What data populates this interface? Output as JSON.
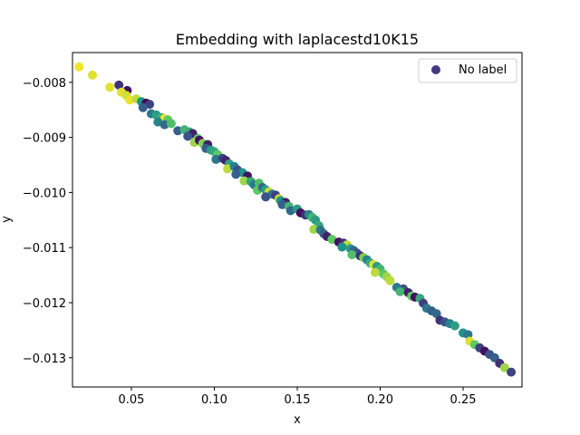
{
  "chart_data": {
    "type": "scatter",
    "title": "Embedding with laplacestd10K15",
    "xlabel": "x",
    "ylabel": "y",
    "xlim": [
      0.0145,
      0.2855
    ],
    "ylim": [
      -0.01353,
      -0.00746
    ],
    "xticks": [
      0.05,
      0.1,
      0.15,
      0.2,
      0.25
    ],
    "xtick_labels": [
      "0.05",
      "0.10",
      "0.15",
      "0.20",
      "0.25"
    ],
    "yticks": [
      -0.008,
      -0.009,
      -0.01,
      -0.011,
      -0.012,
      -0.013
    ],
    "ytick_labels": [
      "−0.008",
      "−0.009",
      "−0.010",
      "−0.011",
      "−0.012",
      "−0.013"
    ],
    "grid": false,
    "legend": {
      "entries": [
        "No label"
      ],
      "placement": "upper right",
      "marker_color": "#443983"
    },
    "colormap": "viridis",
    "series": [
      {
        "points": [
          [
            0.0185,
            -0.00772,
            0.98
          ],
          [
            0.0265,
            -0.00787,
            0.95
          ],
          [
            0.037,
            -0.00809,
            0.96
          ],
          [
            0.0425,
            -0.00805,
            0.15
          ],
          [
            0.0475,
            -0.00815,
            0.05
          ],
          [
            0.044,
            -0.00818,
            0.95
          ],
          [
            0.047,
            -0.00824,
            0.93
          ],
          [
            0.049,
            -0.00832,
            0.97
          ],
          [
            0.053,
            -0.0083,
            0.9
          ],
          [
            0.056,
            -0.00835,
            0.5
          ],
          [
            0.059,
            -0.00838,
            0.0
          ],
          [
            0.061,
            -0.0084,
            0.2
          ],
          [
            0.057,
            -0.00846,
            0.3
          ],
          [
            0.062,
            -0.00857,
            0.4
          ],
          [
            0.065,
            -0.00859,
            0.55
          ],
          [
            0.068,
            -0.00864,
            0.62
          ],
          [
            0.07,
            -0.00866,
            0.98
          ],
          [
            0.072,
            -0.00868,
            0.75
          ],
          [
            0.066,
            -0.00872,
            0.45
          ],
          [
            0.07,
            -0.00877,
            0.35
          ],
          [
            0.074,
            -0.00875,
            0.7
          ],
          [
            0.078,
            -0.00888,
            0.3
          ],
          [
            0.082,
            -0.00886,
            0.65
          ],
          [
            0.085,
            -0.0089,
            0.6
          ],
          [
            0.087,
            -0.00893,
            0.1
          ],
          [
            0.084,
            -0.00898,
            0.25
          ],
          [
            0.09,
            -0.00902,
            0.7
          ],
          [
            0.088,
            -0.00909,
            0.85
          ],
          [
            0.091,
            -0.00905,
            0.05
          ],
          [
            0.093,
            -0.00911,
            0.8
          ],
          [
            0.096,
            -0.00913,
            0.1
          ],
          [
            0.095,
            -0.0092,
            0.3
          ],
          [
            0.098,
            -0.00923,
            0.55
          ],
          [
            0.1,
            -0.00926,
            0.6
          ],
          [
            0.102,
            -0.00931,
            0.75
          ],
          [
            0.101,
            -0.0094,
            0.4
          ],
          [
            0.105,
            -0.00938,
            0.2
          ],
          [
            0.107,
            -0.00942,
            0.1
          ],
          [
            0.109,
            -0.00948,
            0.55
          ],
          [
            0.108,
            -0.00957,
            0.9
          ],
          [
            0.112,
            -0.00953,
            0.45
          ],
          [
            0.114,
            -0.00959,
            0.25
          ],
          [
            0.117,
            -0.00964,
            0.5
          ],
          [
            0.113,
            -0.00967,
            0.3
          ],
          [
            0.12,
            -0.0097,
            0.05
          ],
          [
            0.118,
            -0.00979,
            0.85
          ],
          [
            0.122,
            -0.0098,
            0.6
          ],
          [
            0.124,
            -0.00986,
            0.4
          ],
          [
            0.127,
            -0.00983,
            0.7
          ],
          [
            0.126,
            -0.00996,
            0.75
          ],
          [
            0.129,
            -0.00991,
            0.35
          ],
          [
            0.131,
            -0.00995,
            0.55
          ],
          [
            0.133,
            -0.00999,
            0.92
          ],
          [
            0.135,
            -0.01003,
            0.4
          ],
          [
            0.131,
            -0.01008,
            0.25
          ],
          [
            0.137,
            -0.01005,
            0.2
          ],
          [
            0.139,
            -0.01011,
            0.9
          ],
          [
            0.14,
            -0.01015,
            0.5
          ],
          [
            0.143,
            -0.01018,
            0.1
          ],
          [
            0.141,
            -0.01022,
            0.3
          ],
          [
            0.145,
            -0.01025,
            0.65
          ],
          [
            0.146,
            -0.01033,
            0.35
          ],
          [
            0.15,
            -0.0103,
            0.55
          ],
          [
            0.152,
            -0.01037,
            0.05
          ],
          [
            0.155,
            -0.01041,
            0.15
          ],
          [
            0.157,
            -0.0104,
            0.45
          ],
          [
            0.159,
            -0.01045,
            0.65
          ],
          [
            0.161,
            -0.0105,
            0.55
          ],
          [
            0.163,
            -0.0106,
            0.6
          ],
          [
            0.16,
            -0.01067,
            0.85
          ],
          [
            0.164,
            -0.01068,
            0.4
          ],
          [
            0.166,
            -0.01075,
            0.3
          ],
          [
            0.168,
            -0.0108,
            0.1
          ],
          [
            0.171,
            -0.01085,
            0.75
          ],
          [
            0.175,
            -0.0109,
            0.05
          ],
          [
            0.178,
            -0.01092,
            0.15
          ],
          [
            0.18,
            -0.01095,
            0.9
          ],
          [
            0.177,
            -0.01099,
            0.5
          ],
          [
            0.182,
            -0.01102,
            0.55
          ],
          [
            0.184,
            -0.01105,
            0.35
          ],
          [
            0.186,
            -0.0111,
            0.25
          ],
          [
            0.183,
            -0.01113,
            0.7
          ],
          [
            0.188,
            -0.01115,
            0.15
          ],
          [
            0.19,
            -0.01118,
            0.8
          ],
          [
            0.192,
            -0.01122,
            0.45
          ],
          [
            0.194,
            -0.01128,
            0.6
          ],
          [
            0.196,
            -0.01131,
            0.95
          ],
          [
            0.198,
            -0.01134,
            0.55
          ],
          [
            0.2,
            -0.01139,
            0.65
          ],
          [
            0.197,
            -0.01145,
            0.9
          ],
          [
            0.202,
            -0.01148,
            0.75
          ],
          [
            0.204,
            -0.01153,
            0.85
          ],
          [
            0.206,
            -0.0116,
            0.9
          ],
          [
            0.21,
            -0.01172,
            0.4
          ],
          [
            0.214,
            -0.01175,
            0.25
          ],
          [
            0.212,
            -0.0118,
            0.65
          ],
          [
            0.217,
            -0.01182,
            0.1
          ],
          [
            0.219,
            -0.01188,
            0.75
          ],
          [
            0.221,
            -0.0119,
            0.05
          ],
          [
            0.224,
            -0.01192,
            0.6
          ],
          [
            0.226,
            -0.01201,
            0.2
          ],
          [
            0.228,
            -0.0121,
            0.4
          ],
          [
            0.231,
            -0.01215,
            0.3
          ],
          [
            0.234,
            -0.0122,
            0.35
          ],
          [
            0.236,
            -0.01232,
            0.15
          ],
          [
            0.239,
            -0.01235,
            0.25
          ],
          [
            0.242,
            -0.01238,
            0.45
          ],
          [
            0.245,
            -0.01242,
            0.55
          ],
          [
            0.25,
            -0.01255,
            0.5
          ],
          [
            0.253,
            -0.01258,
            0.4
          ],
          [
            0.254,
            -0.0127,
            0.95
          ],
          [
            0.257,
            -0.01276,
            0.75
          ],
          [
            0.26,
            -0.01282,
            0.2
          ],
          [
            0.263,
            -0.01288,
            0.05
          ],
          [
            0.266,
            -0.01294,
            0.25
          ],
          [
            0.269,
            -0.013,
            0.3
          ],
          [
            0.272,
            -0.0131,
            0.15
          ],
          [
            0.275,
            -0.01318,
            0.85
          ],
          [
            0.279,
            -0.01326,
            0.2
          ]
        ]
      }
    ]
  }
}
